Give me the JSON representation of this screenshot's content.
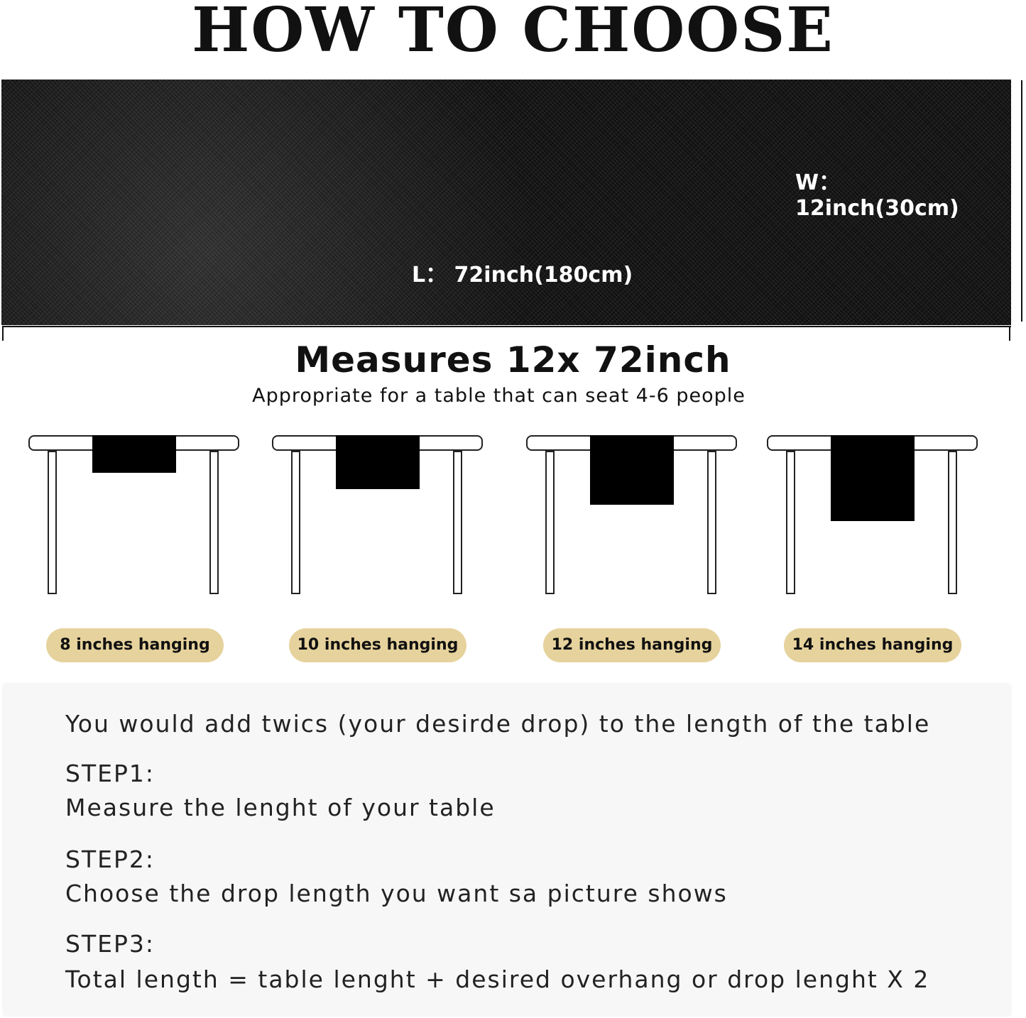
{
  "title": "HOW TO CHOOSE",
  "runner": {
    "width_label": "W：  12inch(30cm)",
    "length_label": "L：  72inch(180cm)"
  },
  "heading": "Measures 12x 72inch",
  "subheading": "Appropriate for a table that can seat 4-6 people",
  "tables": [
    {
      "label": "8 inches hanging",
      "drop_inches": 8
    },
    {
      "label": "10 inches hanging",
      "drop_inches": 10
    },
    {
      "label": "12 inches hanging",
      "drop_inches": 12
    },
    {
      "label": "14 inches hanging",
      "drop_inches": 14
    }
  ],
  "colors": {
    "pill": "#e6d29c",
    "runner": "#111111",
    "panel": "#f7f7f7"
  },
  "instructions": {
    "intro": "You would add twics (your desirde drop) to the length of the table",
    "steps": [
      {
        "label": "STEP1:",
        "text": "Measure the lenght of your table"
      },
      {
        "label": "STEP2:",
        "text": "Choose the drop length you want sa picture shows"
      },
      {
        "label": "STEP3:",
        "text": "Total length = table lenght + desired overhang or drop lenght X 2"
      }
    ]
  }
}
